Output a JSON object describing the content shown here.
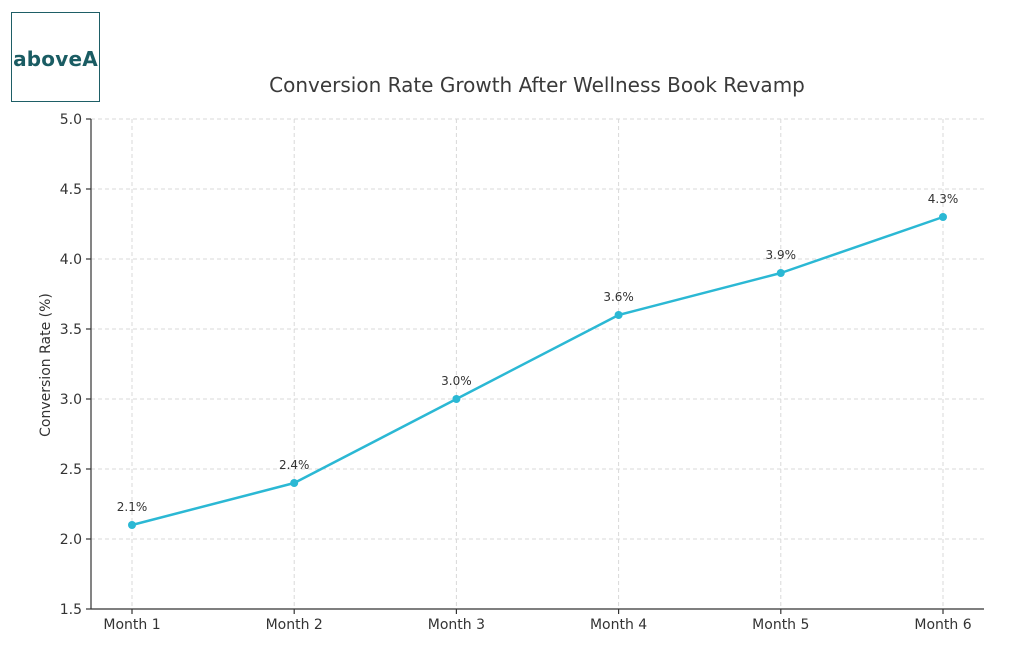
{
  "logo": {
    "text": "aboveA"
  },
  "chart_data": {
    "type": "line",
    "title": "Conversion Rate Growth After Wellness Book Revamp",
    "xlabel": "",
    "ylabel": "Conversion Rate (%)",
    "categories": [
      "Month 1",
      "Month 2",
      "Month 3",
      "Month 4",
      "Month 5",
      "Month 6"
    ],
    "values": [
      2.1,
      2.4,
      3.0,
      3.6,
      3.9,
      4.3
    ],
    "data_labels": [
      "2.1%",
      "2.4%",
      "3.0%",
      "3.6%",
      "3.9%",
      "4.3%"
    ],
    "ylim": [
      1.5,
      5.0
    ],
    "yticks": [
      "1.5",
      "2.0",
      "2.5",
      "3.0",
      "3.5",
      "4.0",
      "4.5",
      "5.0"
    ],
    "grid": true,
    "line_color": "#2bb8d4"
  }
}
